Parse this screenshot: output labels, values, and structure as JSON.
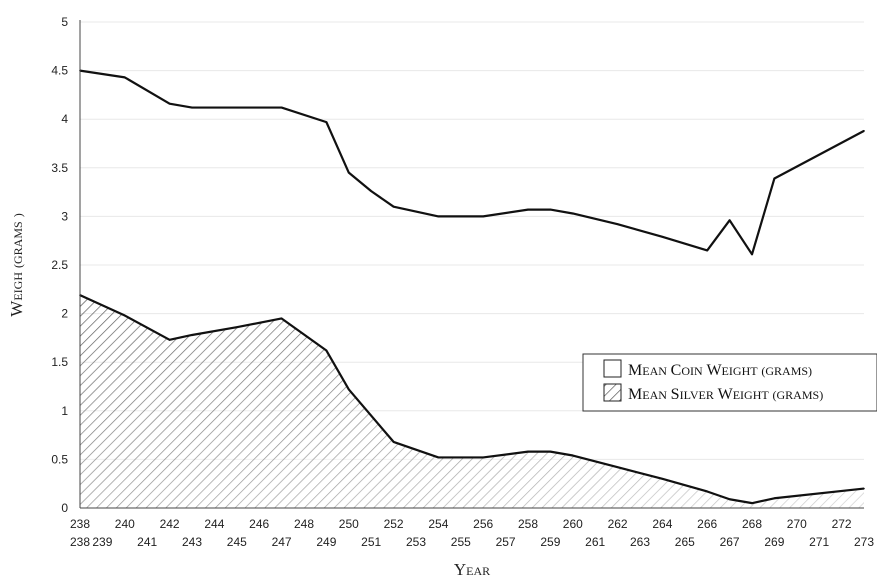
{
  "chart_data": {
    "type": "area",
    "xlabel": "Year",
    "ylabel": "Weigh (grams )",
    "ylim": [
      0,
      5
    ],
    "yticks": [
      "0",
      "0.5",
      "1",
      "1.5",
      "2",
      "2.5",
      "3",
      "3.5",
      "4",
      "4.5",
      "5"
    ],
    "xlim": [
      238,
      273
    ],
    "xticks_top": [
      "238",
      "240",
      "242",
      "244",
      "246",
      "248",
      "250",
      "252",
      "254",
      "256",
      "258",
      "260",
      "262",
      "264",
      "266",
      "268",
      "270",
      "272"
    ],
    "xticks_bottom": [
      "238",
      "239",
      "241",
      "243",
      "245",
      "247",
      "249",
      "251",
      "253",
      "255",
      "257",
      "259",
      "261",
      "263",
      "265",
      "267",
      "269",
      "271",
      "273"
    ],
    "grid": "horizontal",
    "legend_position": "right",
    "legend": [
      {
        "key": "coin",
        "label": "Mean Coin Weight (grams)",
        "style": "open-box"
      },
      {
        "key": "silver",
        "label": "Mean Silver Weight (grams)",
        "style": "hatched-box"
      }
    ],
    "series": [
      {
        "key": "coin",
        "name": "Mean Coin Weight (grams)",
        "style": "line",
        "x": [
          238,
          240,
          242,
          243,
          245,
          247,
          249,
          250,
          251,
          252,
          254,
          256,
          258,
          259,
          260,
          262,
          264,
          266,
          267,
          268,
          269,
          273
        ],
        "values": [
          4.5,
          4.43,
          4.16,
          4.12,
          4.12,
          4.12,
          3.97,
          3.45,
          3.26,
          3.1,
          3.0,
          3.0,
          3.07,
          3.07,
          3.03,
          2.92,
          2.79,
          2.65,
          2.96,
          2.61,
          3.39,
          3.88
        ]
      },
      {
        "key": "silver",
        "name": "Mean Silver Weight (grams)",
        "style": "hatched-area",
        "x": [
          238,
          240,
          242,
          243,
          245,
          247,
          249,
          250,
          252,
          254,
          256,
          258,
          259,
          260,
          262,
          264,
          266,
          267,
          268,
          269,
          273
        ],
        "values": [
          2.19,
          1.98,
          1.73,
          1.78,
          1.86,
          1.95,
          1.62,
          1.22,
          0.68,
          0.52,
          0.52,
          0.58,
          0.58,
          0.54,
          0.42,
          0.3,
          0.17,
          0.09,
          0.05,
          0.1,
          0.2
        ]
      }
    ]
  }
}
